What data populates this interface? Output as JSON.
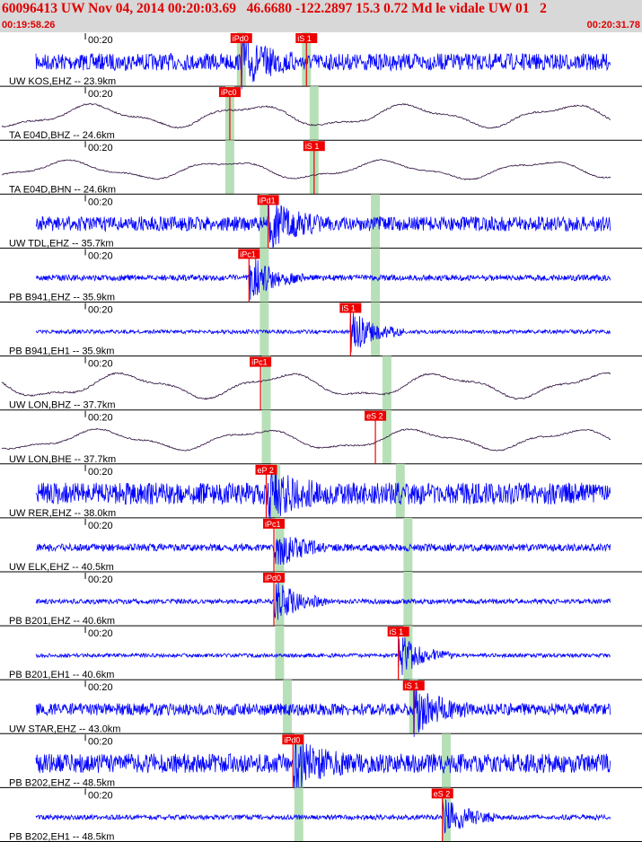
{
  "header": {
    "title": "60096413 UW Nov 04, 2014 00:20:03.69   46.6680 -122.2897 15.3 0.72 Md le vidale UW 01   2",
    "start_time": "00:19:58.26",
    "end_time": "00:20:31.78"
  },
  "colors": {
    "header_bg": "#d8d8d8",
    "header_text": "#e00000",
    "trace_blue": "#0000ff",
    "trace_dark": "#2a0a3a",
    "pick_box": "#ee0000",
    "window_green": "#b8e0b8"
  },
  "chart_data": {
    "type": "seismogram",
    "time_range": [
      "00:19:58.26",
      "00:20:31.78"
    ],
    "tick_label": "00:20",
    "traces": [
      {
        "label": "UW KOS,EHZ -- 23.9km",
        "color": "blue",
        "amp": 0.35,
        "style": "noise",
        "picks": [
          {
            "label": "iPd0",
            "t": 12.6
          },
          {
            "label": "iS 1",
            "t": 16.0
          }
        ],
        "ticks": [
          5.3
        ],
        "green": [
          12.6,
          16.0
        ]
      },
      {
        "label": "TA E04D,BHZ -- 24.6km",
        "color": "dark",
        "amp": 0.55,
        "style": "wave",
        "picks": [
          {
            "label": "iPc0",
            "t": 12.0
          }
        ],
        "ticks": [
          5.3
        ],
        "green": [
          12.0,
          16.4
        ]
      },
      {
        "label": "TA E04D,BHN -- 24.6km",
        "color": "dark",
        "amp": 0.45,
        "style": "wave",
        "picks": [
          {
            "label": "iS 1",
            "t": 16.4
          }
        ],
        "ticks": [
          5.3
        ],
        "green": [
          12.0,
          16.4
        ]
      },
      {
        "label": "UW TDL,EHZ -- 35.7km",
        "color": "blue",
        "amp": 0.3,
        "style": "noise",
        "picks": [
          {
            "label": "iPd1",
            "t": 14.0
          }
        ],
        "ticks": [
          5.3
        ],
        "green": [
          13.8,
          19.6
        ]
      },
      {
        "label": "PB B941,EHZ -- 35.9km",
        "color": "blue",
        "amp": 0.12,
        "style": "noise",
        "picks": [
          {
            "label": "iPc1",
            "t": 13.0
          }
        ],
        "ticks": [
          5.3
        ],
        "green": [
          13.8,
          19.6
        ]
      },
      {
        "label": "PB B941,EH1 -- 35.9km",
        "color": "blue",
        "amp": 0.08,
        "style": "noise",
        "picks": [
          {
            "label": "iS 1",
            "t": 18.3
          }
        ],
        "ticks": [
          5.3
        ],
        "green": [
          13.8,
          19.6
        ]
      },
      {
        "label": "UW LON,BHZ -- 37.7km",
        "color": "dark",
        "amp": 0.6,
        "style": "wave",
        "picks": [
          {
            "label": "iPc1",
            "t": 13.6
          }
        ],
        "ticks": [
          5.3
        ],
        "green": [
          13.9,
          20.2
        ]
      },
      {
        "label": "UW LON,BHE -- 37.7km",
        "color": "dark",
        "amp": 0.5,
        "style": "wave",
        "picks": [
          {
            "label": "eS 2",
            "t": 19.6
          }
        ],
        "ticks": [
          5.3
        ],
        "green": [
          13.9,
          20.2
        ]
      },
      {
        "label": "UW RER,EHZ -- 38.0km",
        "color": "blue",
        "amp": 0.45,
        "style": "noise",
        "picks": [
          {
            "label": "eP 2",
            "t": 13.9
          }
        ],
        "ticks": [
          5.3
        ],
        "green": [
          14.4,
          20.9
        ]
      },
      {
        "label": "UW ELK,EHZ -- 40.5km",
        "color": "blue",
        "amp": 0.15,
        "style": "noise",
        "picks": [
          {
            "label": "iPc1",
            "t": 14.3
          }
        ],
        "ticks": [
          5.3
        ],
        "green": [
          14.6,
          21.3
        ]
      },
      {
        "label": "PB B201,EHZ -- 40.6km",
        "color": "blue",
        "amp": 0.1,
        "style": "noise",
        "picks": [
          {
            "label": "iPd0",
            "t": 14.3
          }
        ],
        "ticks": [
          5.3
        ],
        "green": [
          14.6,
          21.3
        ]
      },
      {
        "label": "PB B201,EH1 -- 40.6km",
        "color": "blue",
        "amp": 0.08,
        "style": "noise",
        "picks": [
          {
            "label": "iS 1",
            "t": 20.8
          }
        ],
        "ticks": [
          5.3
        ],
        "green": [
          14.6,
          21.3
        ]
      },
      {
        "label": "UW STAR,EHZ -- 43.0km",
        "color": "blue",
        "amp": 0.25,
        "style": "noise",
        "picks": [
          {
            "label": "iS 1",
            "t": 21.6
          }
        ],
        "ticks": [
          5.3
        ],
        "green": [
          15.0,
          21.6
        ]
      },
      {
        "label": "PB B202,EHZ -- 48.5km",
        "color": "blue",
        "amp": 0.4,
        "style": "noise",
        "picks": [
          {
            "label": "iPd0",
            "t": 15.3
          }
        ],
        "ticks": [
          5.3
        ],
        "green": [
          15.6,
          23.3
        ]
      },
      {
        "label": "PB B202,EH1 -- 48.5km",
        "color": "blue",
        "amp": 0.1,
        "style": "noise",
        "picks": [
          {
            "label": "eS 2",
            "t": 23.1
          }
        ],
        "ticks": [
          5.3
        ],
        "green": [
          15.6,
          23.3
        ]
      }
    ]
  }
}
